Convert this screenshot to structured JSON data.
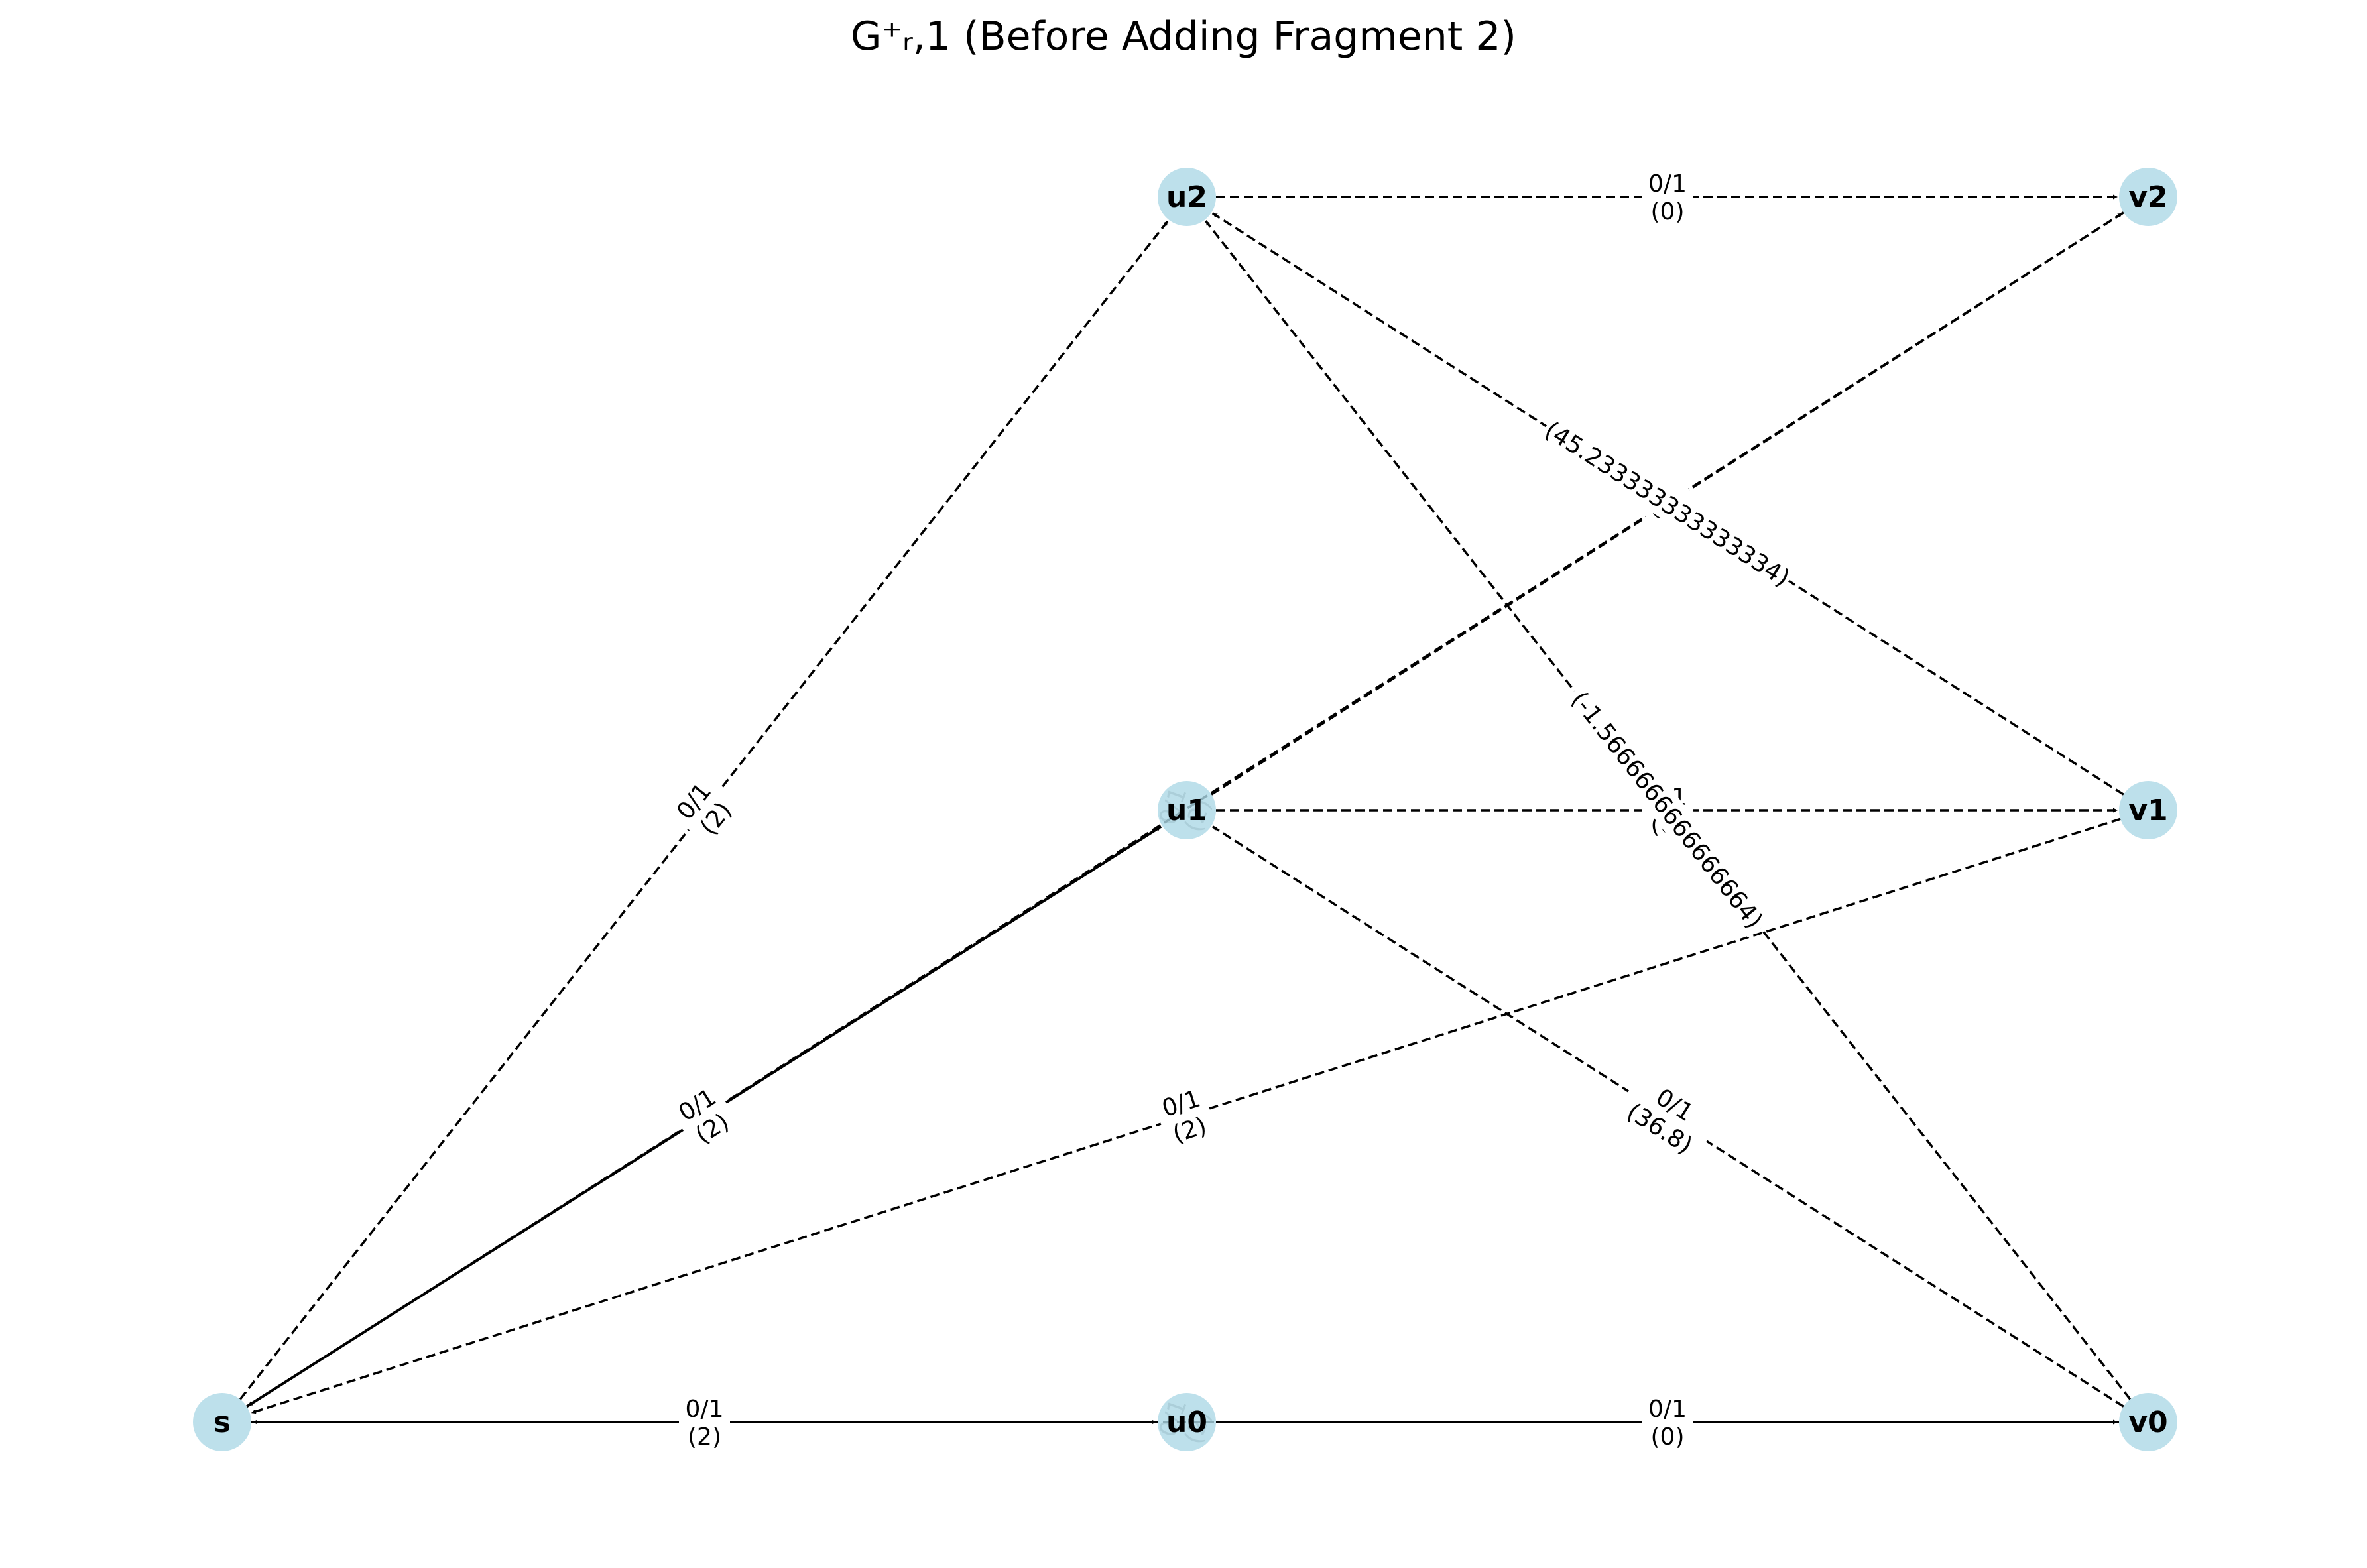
{
  "title": "G⁺ᵣ,1 (Before Adding Fragment 2)",
  "nodes": [
    {
      "id": "s",
      "label": "s"
    },
    {
      "id": "u0",
      "label": "u0"
    },
    {
      "id": "u1",
      "label": "u1"
    },
    {
      "id": "u2",
      "label": "u2"
    },
    {
      "id": "v0",
      "label": "v0"
    },
    {
      "id": "v1",
      "label": "v1"
    },
    {
      "id": "v2",
      "label": "v2"
    }
  ],
  "edges": [
    {
      "id": "u2-v2",
      "from": "u2",
      "to": "v2",
      "style": "dashed",
      "flow": "0/1",
      "cost": "(0)"
    },
    {
      "id": "u1-v1",
      "from": "u1",
      "to": "v1",
      "style": "dashed",
      "flow": "0/1",
      "cost": "(0)"
    },
    {
      "id": "u0-v0",
      "from": "u0",
      "to": "v0",
      "style": "solid",
      "flow": "0/1",
      "cost": "(0)"
    },
    {
      "id": "s-u0",
      "from": "s",
      "to": "u0",
      "style": "solid",
      "flow": "0/1",
      "cost": "(2)"
    },
    {
      "id": "s-u1",
      "from": "s",
      "to": "u1",
      "style": "solid",
      "flow": "0/1",
      "cost": "(2)"
    },
    {
      "id": "s-u2",
      "from": "s",
      "to": "u2",
      "style": "dashed",
      "flow": "0/1",
      "cost": "(2)"
    },
    {
      "id": "u1-v2",
      "from": "u1",
      "to": "v2",
      "style": "dashed",
      "flow": "0/1",
      "cost": ""
    },
    {
      "id": "v1-u2",
      "from": "v1",
      "to": "u2",
      "style": "dashed",
      "flow": "",
      "cost": "(45.233333333333334)"
    },
    {
      "id": "v0-u2",
      "from": "v0",
      "to": "u2",
      "style": "dashed",
      "flow": "",
      "cost": "(-1.5666666666666664)"
    },
    {
      "id": "v0-u1",
      "from": "v0",
      "to": "u1",
      "style": "dashed",
      "flow": "0/1",
      "cost": "(36.8)"
    },
    {
      "id": "v1-s",
      "from": "v1",
      "to": "s",
      "style": "dashed",
      "flow": "0/1",
      "cost": "(2)"
    },
    {
      "id": "v2-s",
      "from": "v2",
      "to": "s",
      "style": "dashed",
      "flow": "",
      "cost": ""
    },
    {
      "id": "v0-s",
      "from": "v0",
      "to": "s",
      "style": "dashed",
      "flow": "",
      "cost": ""
    }
  ],
  "faint_labels": [
    {
      "id": "u1-self",
      "flow": "0/1",
      "cost": "(2)"
    },
    {
      "id": "u0-self",
      "flow": "0/1",
      "cost": "(2)"
    }
  ]
}
